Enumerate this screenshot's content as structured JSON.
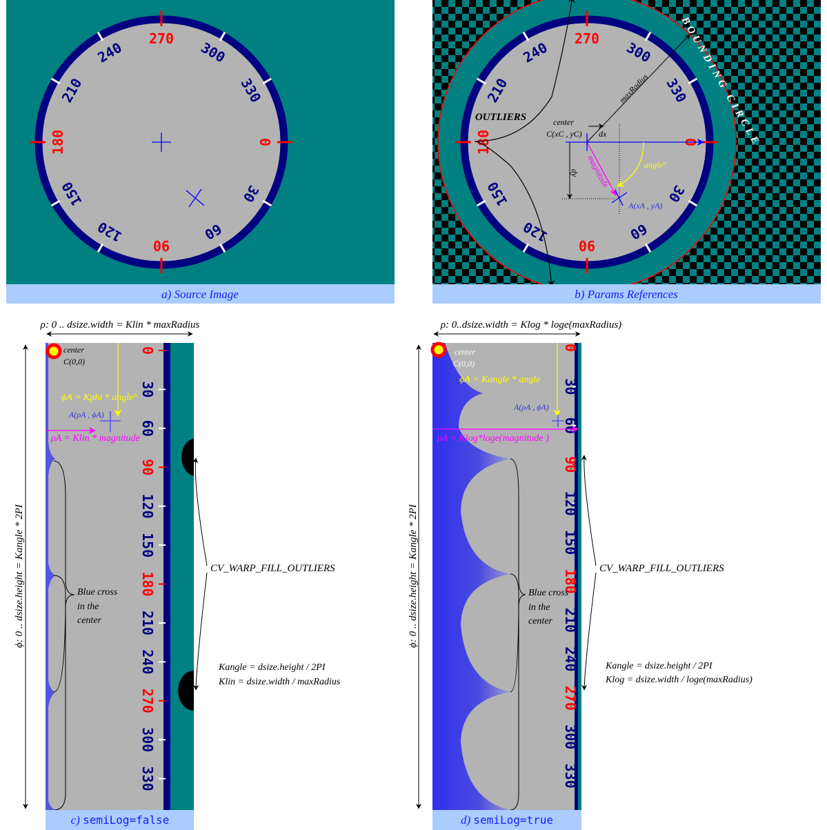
{
  "colors": {
    "teal": "#008080",
    "navy": "#000080",
    "dial_gray": "#b3b3b3",
    "caption_bg": "#aaccff",
    "caption_text": "#1a1aff",
    "accent_red": "#ff0000",
    "magenta": "#ff00ff",
    "yellow": "#ffff00",
    "blue": "#0000ff"
  },
  "dial_labels": [
    "0",
    "30",
    "60",
    "90",
    "120",
    "150",
    "180",
    "210",
    "240",
    "270",
    "300",
    "330"
  ],
  "panel_a": {
    "caption": "a) Source Image"
  },
  "panel_b": {
    "caption": "b) Params References",
    "bounding_circle": "BOUNDING CIRCLE",
    "outliers": "OUTLIERS",
    "center_label": "center",
    "center_coord": "C(xC , yC)",
    "max_radius": "maxRadius",
    "dx": "dx",
    "dy": "dy",
    "magnitude": "magnitude",
    "angle": "angle°",
    "point_a": "A(xA , yA)"
  },
  "panel_c": {
    "caption_prefix": "c) ",
    "caption_code": "semiLog=false",
    "width_label": "ρ: 0 .. dsize.width = Klin * maxRadius",
    "height_label": "ϕ: 0 .. dsize.height = Kangle * 2PI",
    "center_label": "center",
    "center_coord": "C(0,0)",
    "phi_formula": "ϕA = Kphi * angle°",
    "point_a": "A(ρA , ϕA)",
    "rho_formula": "ρA = Klin * magnitude",
    "fill_outliers": "CV_WARP_FILL_OUTLIERS",
    "blue_cross": [
      "Blue cross",
      "in the",
      "center"
    ],
    "kangle": "Kangle = dsize.height / 2PI",
    "kfactor": "Klin = dsize.width / maxRadius"
  },
  "panel_d": {
    "caption_prefix": "d) ",
    "caption_code": "semiLog=true",
    "width_label": "ρ: 0..dsize.width = Klog * loge(maxRadius)",
    "height_label": "ϕ: 0 .. dsize.height = Kangle * 2PI",
    "center_label": "center",
    "center_coord": "C(0,0)",
    "phi_formula": "ϕA = Kangle * angle",
    "point_a": "A(ρA , ϕA)",
    "rho_formula": "ρA = Klog*loge(magnitude )",
    "fill_outliers": "CV_WARP_FILL_OUTLIERS",
    "blue_cross": [
      "Blue cross",
      "in the",
      "center"
    ],
    "kangle": "Kangle = dsize.height / 2PI",
    "kfactor": "Klog = dsize.width / loge(maxRadius)"
  }
}
